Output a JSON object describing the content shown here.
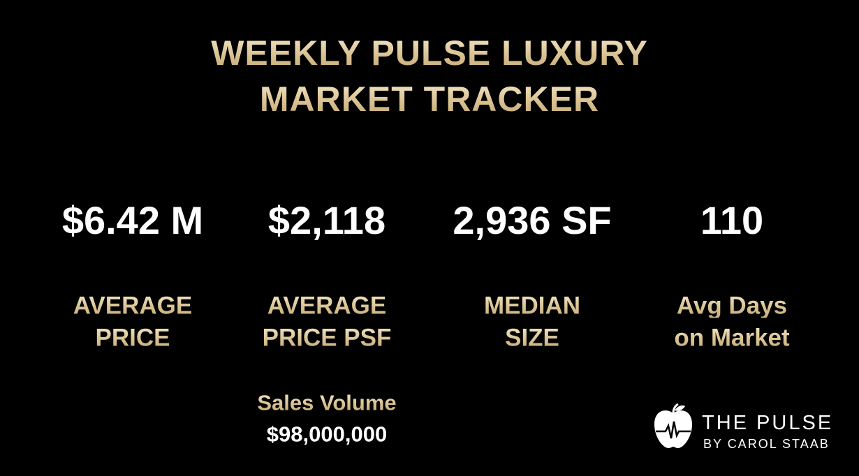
{
  "header": {
    "title_lines": [
      "WEEKLY PULSE LUXURY",
      "MARKET TRACKER"
    ]
  },
  "metrics": [
    {
      "value": "$6.42 M",
      "label_lines": [
        "AVERAGE",
        "PRICE"
      ]
    },
    {
      "value": "$2,118",
      "label_lines": [
        "AVERAGE",
        "PRICE PSF"
      ]
    },
    {
      "value": "2,936 SF",
      "label_lines": [
        "MEDIAN",
        "SIZE"
      ]
    },
    {
      "value": "110",
      "label_lines": [
        "Avg Days",
        "on Market"
      ]
    }
  ],
  "sales_volume": {
    "label": "Sales Volume",
    "value": "$98,000,000"
  },
  "logo": {
    "name": "THE PULSE",
    "byline": "BY CAROL STAAB"
  }
}
